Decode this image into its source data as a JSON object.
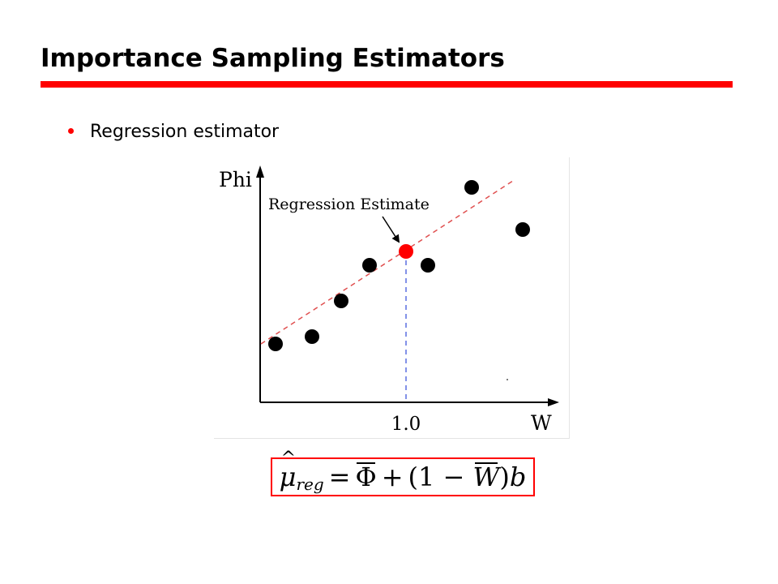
{
  "slide": {
    "title": "Importance Sampling Estimators",
    "bullets": [
      "Regression estimator"
    ],
    "accent_color": "#ff0000"
  },
  "figure": {
    "y_axis_label": "Phi",
    "x_axis_label": "W",
    "x_tick_label": "1.0",
    "annotation": "Regression Estimate",
    "colors": {
      "points": "#000000",
      "estimate_point": "#ff0000",
      "regression_line": "#e05050",
      "vertical_guide": "#5a6ee0"
    }
  },
  "formula": {
    "mu": "μ",
    "mu_sub": "reg",
    "equals": "=",
    "phi": "Φ",
    "plus": "+",
    "open": "(1 −",
    "w": "W",
    "close": ")",
    "b": "b"
  }
}
